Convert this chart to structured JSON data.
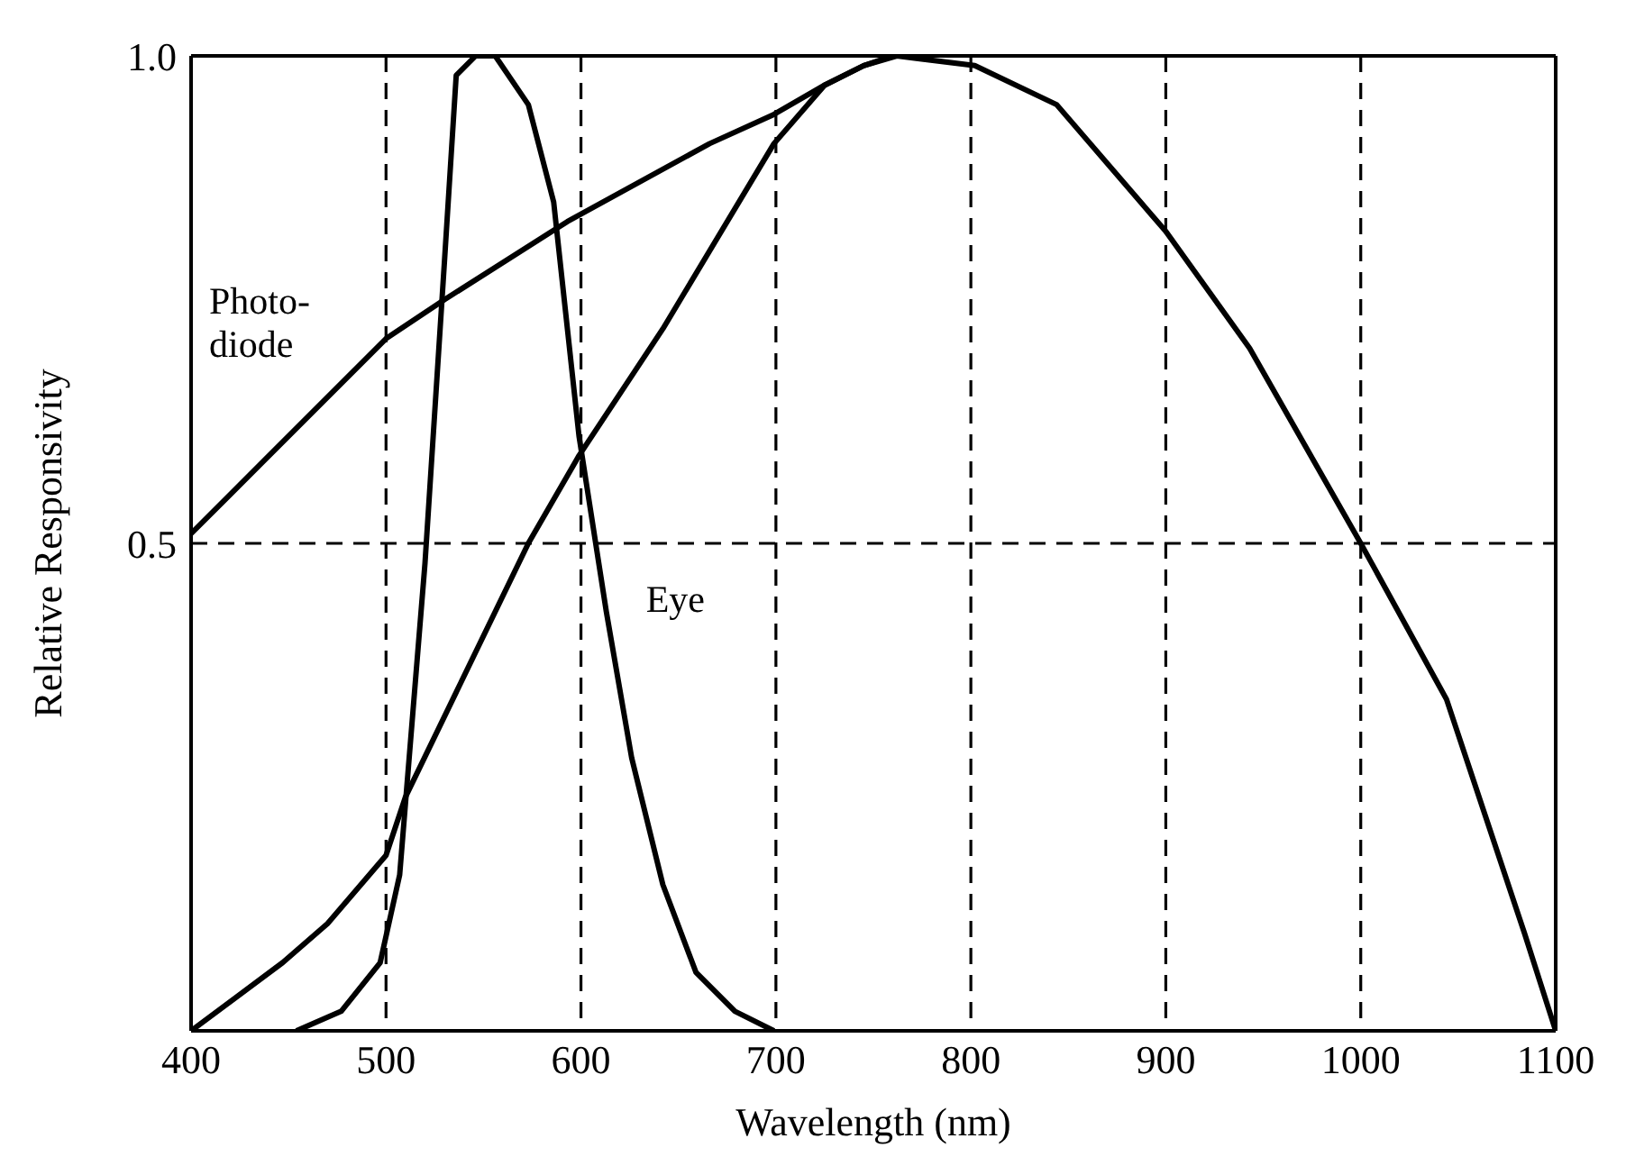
{
  "chart_data": {
    "type": "line",
    "xlabel": "Wavelength (nm)",
    "ylabel": "Relative Responsivity",
    "xlim": [
      400,
      1100
    ],
    "xticks": [
      400,
      500,
      600,
      700,
      800,
      900,
      1000,
      1100
    ],
    "ylim": [
      0,
      1
    ],
    "yticks": [
      0.5,
      {
        "value": 1,
        "label": "1.0"
      }
    ],
    "grid": true,
    "line_style": "solid",
    "series": [
      {
        "name": "Photo-diode",
        "color": "#000000",
        "x": [
          400,
          500,
          530,
          593,
          666,
          699,
          725,
          745,
          760
        ],
        "values": [
          0.51,
          0.71,
          0.75,
          0.83,
          0.91,
          0.94,
          0.97,
          0.99,
          1.0
        ]
      },
      {
        "name": "Eye",
        "color": "#000000",
        "x": [
          454,
          477,
          497,
          507,
          520,
          530,
          536,
          546,
          556,
          573,
          586,
          599,
          613,
          626,
          642,
          659,
          679,
          699
        ],
        "values": [
          0,
          0.02,
          0.07,
          0.16,
          0.48,
          0.79,
          0.98,
          1.0,
          1.0,
          0.95,
          0.85,
          0.61,
          0.43,
          0.28,
          0.15,
          0.06,
          0.02,
          0
        ]
      },
      {
        "color": "#000000",
        "x": [
          400,
          447,
          470,
          500,
          510,
          573,
          599,
          642,
          699,
          725,
          745,
          762,
          802,
          844,
          900,
          943,
          1000,
          1044,
          1064,
          1084,
          1100
        ],
        "values": [
          0,
          0.07,
          0.11,
          0.18,
          0.24,
          0.5,
          0.59,
          0.72,
          0.91,
          0.97,
          0.99,
          1.0,
          0.99,
          0.95,
          0.82,
          0.7,
          0.5,
          0.34,
          0.22,
          0.1,
          0
        ]
      }
    ]
  }
}
